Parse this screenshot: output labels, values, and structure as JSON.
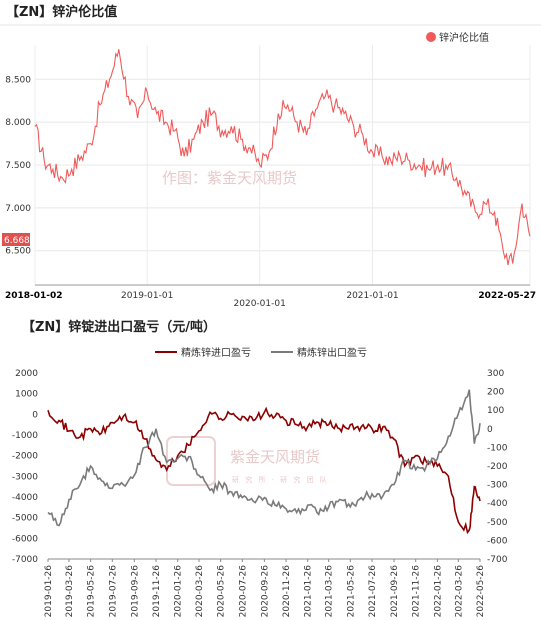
{
  "chart_data": [
    {
      "type": "line",
      "title": "【ZN】锌沪伦比值",
      "legend": "top-right",
      "grid": true,
      "watermark": "作图：紫金天风期货",
      "x_tick_labels": [
        "2018-01-02",
        "2019-01-01",
        "2020-01-01",
        "2021-01-01",
        "2022-05-27"
      ],
      "y_tick_labels": [
        "8.500",
        "8.000",
        "7.500",
        "7.000",
        "6.500"
      ],
      "ylim": [
        6.1,
        8.9
      ],
      "last_value_label": "6.668",
      "series": [
        {
          "name": "锌沪伦比值",
          "color": "#f05a5a",
          "points": [
            [
              "2018-01-02",
              7.95
            ],
            [
              "2018-02-01",
              7.55
            ],
            [
              "2018-03-01",
              7.45
            ],
            [
              "2018-04-01",
              7.35
            ],
            [
              "2018-05-01",
              7.45
            ],
            [
              "2018-06-01",
              7.6
            ],
            [
              "2018-07-01",
              7.75
            ],
            [
              "2018-08-01",
              8.2
            ],
            [
              "2018-09-01",
              8.5
            ],
            [
              "2018-10-01",
              8.85
            ],
            [
              "2018-11-01",
              8.3
            ],
            [
              "2018-12-01",
              8.05
            ],
            [
              "2019-01-01",
              8.35
            ],
            [
              "2019-02-01",
              8.1
            ],
            [
              "2019-03-01",
              8.0
            ],
            [
              "2019-04-01",
              7.9
            ],
            [
              "2019-05-01",
              7.6
            ],
            [
              "2019-06-01",
              7.8
            ],
            [
              "2019-07-01",
              8.0
            ],
            [
              "2019-08-01",
              8.1
            ],
            [
              "2019-09-01",
              7.9
            ],
            [
              "2019-10-01",
              7.95
            ],
            [
              "2019-11-01",
              7.8
            ],
            [
              "2019-12-01",
              7.7
            ],
            [
              "2020-01-01",
              7.5
            ],
            [
              "2020-02-01",
              7.65
            ],
            [
              "2020-03-01",
              8.1
            ],
            [
              "2020-04-01",
              8.2
            ],
            [
              "2020-05-01",
              8.0
            ],
            [
              "2020-06-01",
              7.85
            ],
            [
              "2020-07-01",
              8.15
            ],
            [
              "2020-08-01",
              8.3
            ],
            [
              "2020-09-01",
              8.2
            ],
            [
              "2020-10-01",
              8.1
            ],
            [
              "2020-11-01",
              7.95
            ],
            [
              "2020-12-01",
              7.85
            ],
            [
              "2021-01-01",
              7.65
            ],
            [
              "2021-02-01",
              7.6
            ],
            [
              "2021-03-01",
              7.55
            ],
            [
              "2021-04-01",
              7.6
            ],
            [
              "2021-05-01",
              7.55
            ],
            [
              "2021-06-01",
              7.5
            ],
            [
              "2021-07-01",
              7.45
            ],
            [
              "2021-08-01",
              7.5
            ],
            [
              "2021-09-01",
              7.45
            ],
            [
              "2021-10-01",
              7.35
            ],
            [
              "2021-11-01",
              7.15
            ],
            [
              "2021-12-01",
              6.95
            ],
            [
              "2022-01-01",
              7.05
            ],
            [
              "2022-02-01",
              6.95
            ],
            [
              "2022-03-01",
              6.5
            ],
            [
              "2022-04-01",
              6.35
            ],
            [
              "2022-05-01",
              7.05
            ],
            [
              "2022-05-27",
              6.668
            ]
          ]
        }
      ]
    },
    {
      "type": "line",
      "title": "【ZN】锌锭进出口盈亏（元/吨）",
      "legend": "top-center",
      "grid": false,
      "watermark": "紫金天风期货",
      "watermark_sub": "研 究 所 · 研 究 团 队",
      "x_tick_labels": [
        "2019-01-26",
        "2019-03-26",
        "2019-05-26",
        "2019-07-26",
        "2019-09-26",
        "2019-11-26",
        "2020-01-26",
        "2020-03-26",
        "2020-05-26",
        "2020-07-26",
        "2020-09-26",
        "2020-11-26",
        "2021-01-26",
        "2021-03-26",
        "2021-05-26",
        "2021-07-26",
        "2021-09-26",
        "2021-11-26",
        "2022-01-26",
        "2022-03-26",
        "2022-05-26"
      ],
      "left_y_tick_labels": [
        "2000",
        "1000",
        "0",
        "-1000",
        "-2000",
        "-3000",
        "-4000",
        "-5000",
        "-6000",
        "-7000"
      ],
      "right_y_tick_labels": [
        "300",
        "200",
        "100",
        "0",
        "-100",
        "-200",
        "-300",
        "-400",
        "-500",
        "-600",
        "-700"
      ],
      "left_ylim": [
        -7000,
        2000
      ],
      "right_ylim": [
        -700,
        300
      ],
      "series": [
        {
          "name": "精炼锌进口盈亏",
          "axis": "left",
          "color": "#8b0000",
          "points": [
            [
              "2019-01-26",
              200
            ],
            [
              "2019-02-26",
              -300
            ],
            [
              "2019-03-26",
              -800
            ],
            [
              "2019-04-26",
              -1100
            ],
            [
              "2019-05-26",
              -700
            ],
            [
              "2019-06-26",
              -900
            ],
            [
              "2019-07-26",
              -400
            ],
            [
              "2019-08-26",
              -100
            ],
            [
              "2019-09-26",
              -400
            ],
            [
              "2019-10-26",
              -1200
            ],
            [
              "2019-11-26",
              -2200
            ],
            [
              "2019-12-26",
              -2700
            ],
            [
              "2020-01-26",
              -2000
            ],
            [
              "2020-02-26",
              -1500
            ],
            [
              "2020-03-26",
              -800
            ],
            [
              "2020-04-26",
              100
            ],
            [
              "2020-05-26",
              -200
            ],
            [
              "2020-06-26",
              0
            ],
            [
              "2020-07-26",
              -100
            ],
            [
              "2020-08-26",
              -300
            ],
            [
              "2020-09-26",
              100
            ],
            [
              "2020-10-26",
              -100
            ],
            [
              "2020-11-26",
              -300
            ],
            [
              "2020-12-26",
              -500
            ],
            [
              "2021-01-26",
              -600
            ],
            [
              "2021-02-26",
              -400
            ],
            [
              "2021-03-26",
              -500
            ],
            [
              "2021-04-26",
              -700
            ],
            [
              "2021-05-26",
              -500
            ],
            [
              "2021-06-26",
              -600
            ],
            [
              "2021-07-26",
              -700
            ],
            [
              "2021-08-26",
              -600
            ],
            [
              "2021-09-26",
              -1200
            ],
            [
              "2021-10-26",
              -2500
            ],
            [
              "2021-11-26",
              -2000
            ],
            [
              "2021-12-26",
              -2300
            ],
            [
              "2022-01-26",
              -2500
            ],
            [
              "2022-02-26",
              -3000
            ],
            [
              "2022-03-26",
              -5200
            ],
            [
              "2022-04-26",
              -5600
            ],
            [
              "2022-05-10",
              -3500
            ],
            [
              "2022-05-26",
              -4200
            ]
          ]
        },
        {
          "name": "精炼锌出口盈亏",
          "axis": "right",
          "color": "#7a7a7a",
          "points": [
            [
              "2019-01-26",
              -450
            ],
            [
              "2019-02-26",
              -520
            ],
            [
              "2019-03-26",
              -380
            ],
            [
              "2019-04-26",
              -300
            ],
            [
              "2019-05-26",
              -200
            ],
            [
              "2019-06-26",
              -280
            ],
            [
              "2019-07-26",
              -320
            ],
            [
              "2019-08-26",
              -300
            ],
            [
              "2019-09-26",
              -250
            ],
            [
              "2019-10-26",
              -100
            ],
            [
              "2019-11-26",
              0
            ],
            [
              "2019-12-26",
              -180
            ],
            [
              "2020-01-26",
              -160
            ],
            [
              "2020-02-26",
              -150
            ],
            [
              "2020-03-26",
              -250
            ],
            [
              "2020-04-26",
              -330
            ],
            [
              "2020-05-26",
              -300
            ],
            [
              "2020-06-26",
              -340
            ],
            [
              "2020-07-26",
              -370
            ],
            [
              "2020-08-26",
              -390
            ],
            [
              "2020-09-26",
              -370
            ],
            [
              "2020-10-26",
              -410
            ],
            [
              "2020-11-26",
              -430
            ],
            [
              "2020-12-26",
              -450
            ],
            [
              "2021-01-26",
              -410
            ],
            [
              "2021-02-26",
              -460
            ],
            [
              "2021-03-26",
              -420
            ],
            [
              "2021-04-26",
              -380
            ],
            [
              "2021-05-26",
              -420
            ],
            [
              "2021-06-26",
              -370
            ],
            [
              "2021-07-26",
              -350
            ],
            [
              "2021-08-26",
              -360
            ],
            [
              "2021-09-26",
              -300
            ],
            [
              "2021-10-26",
              -170
            ],
            [
              "2021-11-26",
              -220
            ],
            [
              "2021-12-26",
              -200
            ],
            [
              "2022-01-26",
              -160
            ],
            [
              "2022-02-26",
              -40
            ],
            [
              "2022-03-26",
              80
            ],
            [
              "2022-04-26",
              210
            ],
            [
              "2022-05-10",
              -80
            ],
            [
              "2022-05-26",
              30
            ]
          ]
        }
      ]
    }
  ]
}
